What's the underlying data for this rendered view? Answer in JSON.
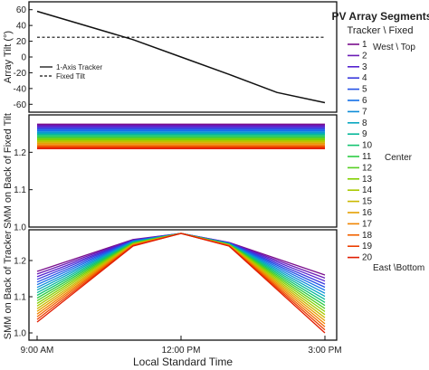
{
  "chart_data": [
    {
      "panel": "top",
      "type": "line",
      "ylabel": "Array Tilt (°)",
      "ylim": [
        -70,
        70
      ],
      "yticks": [
        "60",
        "40",
        "20",
        "0",
        "-20",
        "-40",
        "-60"
      ],
      "x": [
        9,
        10,
        11,
        12,
        13,
        14,
        15
      ],
      "series": [
        {
          "name": "1-Axis Tracker",
          "style": "solid",
          "values": [
            58,
            40,
            22,
            0,
            -22,
            -45,
            -58
          ]
        },
        {
          "name": "Fixed Tilt",
          "style": "dashed",
          "values": [
            25,
            25,
            25,
            25,
            25,
            25,
            25
          ]
        }
      ],
      "legend_position": "center-left"
    },
    {
      "panel": "middle",
      "type": "line",
      "ylabel": "SMM on Back of Fixed Tilt",
      "ylim": [
        1.0,
        1.3
      ],
      "yticks": [
        "1.2",
        "1.1",
        "1.0"
      ],
      "band": {
        "x": [
          9,
          15
        ],
        "seg1": 1.275,
        "seg20": 1.21
      }
    },
    {
      "panel": "bottom",
      "type": "line",
      "ylabel": "SMM on Back of Tracker",
      "ylim": [
        0.98,
        1.285
      ],
      "yticks": [
        "1.2",
        "1.1",
        "1.0"
      ],
      "x": [
        9,
        11,
        12,
        13,
        15
      ],
      "seg1": [
        1.17,
        1.258,
        1.275,
        1.25,
        1.16
      ],
      "seg20": [
        1.03,
        1.24,
        1.275,
        1.24,
        1.0
      ]
    }
  ],
  "x_axis": {
    "label": "Local Standard Time",
    "ticks": [
      {
        "x": 9,
        "label": "9:00 AM"
      },
      {
        "x": 12,
        "label": "12:00 PM"
      },
      {
        "x": 15,
        "label": "3:00 PM"
      }
    ]
  },
  "legend": {
    "title": "PV Array Segments",
    "subtitle": "Tracker \\ Fixed",
    "items": [
      "1",
      "2",
      "3",
      "4",
      "5",
      "6",
      "7",
      "8",
      "9",
      "10",
      "11",
      "12",
      "13",
      "14",
      "15",
      "16",
      "17",
      "18",
      "19",
      "20"
    ],
    "item1_note": "West \\ Top",
    "center_note": "Center",
    "item20_note": "East \\Bottom",
    "colors": [
      "#7a0d8c",
      "#6a1ab5",
      "#5322d0",
      "#3a38dd",
      "#2452e6",
      "#1270e8",
      "#0c8cd8",
      "#07a6c0",
      "#08b89a",
      "#12c470",
      "#2ccb44",
      "#56cf22",
      "#82d000",
      "#a9c900",
      "#cab800",
      "#e4a000",
      "#f08400",
      "#f26200",
      "#ec3e00",
      "#e01c00"
    ]
  }
}
